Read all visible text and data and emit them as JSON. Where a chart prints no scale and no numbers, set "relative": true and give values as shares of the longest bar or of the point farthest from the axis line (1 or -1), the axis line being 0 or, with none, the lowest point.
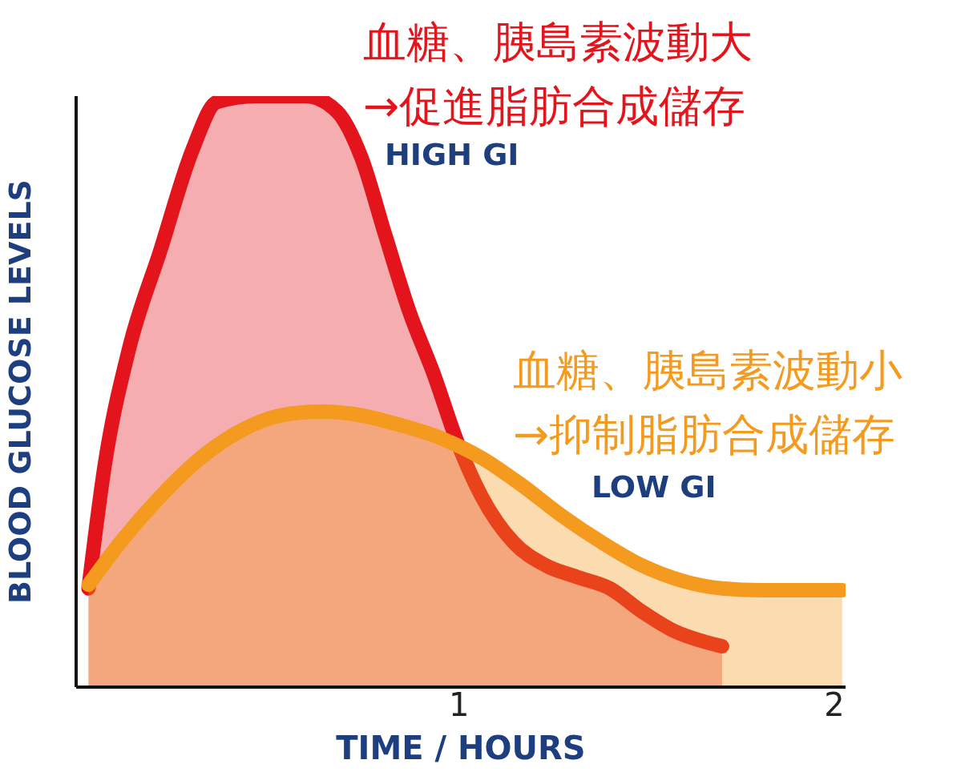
{
  "chart_data": {
    "type": "area",
    "relative": true,
    "xlabel": "TIME / HOURS",
    "ylabel": "BLOOD GLUCOSE LEVELS",
    "xlim": [
      -0.02,
      2.03
    ],
    "xticks": [
      1,
      2
    ],
    "marker": "none",
    "series": [
      {
        "color": "#e3141b",
        "x": [
          0.013,
          0.056,
          0.12,
          0.205,
          0.29,
          0.355,
          0.46,
          0.59,
          0.675,
          0.74,
          0.803,
          0.868,
          0.932,
          0.996,
          1.06,
          1.145,
          1.231,
          1.316,
          1.402,
          1.487,
          1.573,
          1.658,
          1.701
        ],
        "values": [
          0.167,
          0.375,
          0.57,
          0.74,
          0.909,
          0.99,
          1,
          1,
          0.974,
          0.896,
          0.766,
          0.635,
          0.531,
          0.414,
          0.323,
          0.245,
          0.206,
          0.186,
          0.167,
          0.128,
          0.095,
          0.076,
          0.069
        ]
      },
      {
        "color": "#f39a1f",
        "x": [
          0.013,
          0.098,
          0.205,
          0.312,
          0.419,
          0.526,
          0.632,
          0.739,
          0.846,
          0.953,
          1.06,
          1.167,
          1.274,
          1.38,
          1.487,
          1.594,
          1.701,
          1.808,
          1.915,
          2.021
        ],
        "values": [
          0.173,
          0.245,
          0.323,
          0.388,
          0.434,
          0.46,
          0.466,
          0.46,
          0.443,
          0.421,
          0.388,
          0.342,
          0.29,
          0.245,
          0.206,
          0.18,
          0.167,
          0.164,
          0.164,
          0.164
        ]
      }
    ],
    "annotations": [
      "血糖、胰島素波動大",
      "→促進脂肪合成儲存",
      "HIGH GI",
      "血糖、胰島素波動小",
      "→抑制脂肪合成儲存",
      "LOW GI"
    ]
  }
}
